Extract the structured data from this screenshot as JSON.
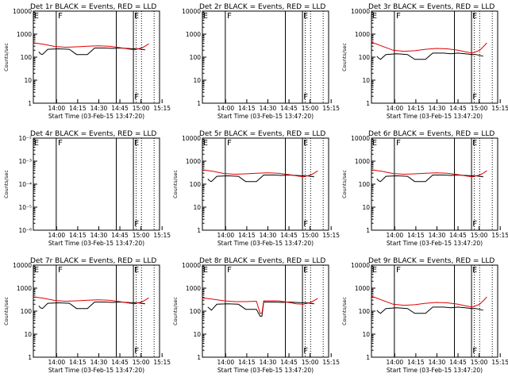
{
  "chart_data": [
    {
      "type": "line",
      "title": "Det 1r BLACK = Events, RED = LLD",
      "ylabel": "Counts/sec",
      "xlabel": "Start Time (03-Feb-15 13:47:20)",
      "x_tick_labels": [
        "14:00",
        "14:15",
        "14:30",
        "14:45",
        "15:00",
        "15:15"
      ],
      "y_tick_labels": [
        "1",
        "10",
        "100",
        "1000",
        "10000"
      ],
      "ylim": [
        1,
        10000
      ],
      "scale": "log",
      "markers": [
        [
          "E",
          "F"
        ],
        [
          "E",
          "F"
        ]
      ],
      "series": [
        {
          "color": "#000000",
          "x": [
            3,
            4,
            5,
            8,
            14,
            20,
            24,
            30,
            34,
            40,
            44,
            48,
            52,
            56,
            58,
            62
          ],
          "y": [
            170,
            140,
            130,
            220,
            230,
            220,
            130,
            130,
            250,
            250,
            240,
            250,
            240,
            230,
            230,
            210
          ]
        },
        {
          "color": "#e00000",
          "x": [
            0,
            6,
            12,
            18,
            24,
            30,
            36,
            42,
            48,
            52,
            56,
            60,
            62,
            64
          ],
          "y": [
            420,
            360,
            290,
            270,
            280,
            300,
            310,
            300,
            260,
            230,
            210,
            250,
            300,
            380
          ]
        }
      ]
    },
    {
      "type": "line",
      "title": "Det 2r BLACK = Events, RED = LLD",
      "ylabel": "",
      "xlabel": "Start Time (03-Feb-15 13:47:20)",
      "x_tick_labels": [
        "14:00",
        "14:15",
        "14:30",
        "14:45",
        "15:00",
        "15:15"
      ],
      "y_tick_labels": [
        "1",
        "10",
        "100",
        "1000",
        "10000"
      ],
      "ylim": [
        1,
        10000
      ],
      "scale": "log",
      "markers": [
        [
          "E",
          "F"
        ],
        [
          "E",
          "F"
        ]
      ],
      "series": []
    },
    {
      "type": "line",
      "title": "Det 3r BLACK = Events, RED = LLD",
      "ylabel": "Counts/sec",
      "xlabel": "Start Time (03-Feb-15 13:47:20)",
      "x_tick_labels": [
        "14:00",
        "14:15",
        "14:30",
        "14:45",
        "15:00",
        "15:15"
      ],
      "y_tick_labels": [
        "1",
        "10",
        "100",
        "1000",
        "10000"
      ],
      "ylim": [
        1,
        10000
      ],
      "scale": "log",
      "markers": [
        [
          "E",
          "F"
        ],
        [
          "E",
          "F"
        ]
      ],
      "series": [
        {
          "color": "#000000",
          "x": [
            3,
            4,
            5,
            8,
            14,
            20,
            24,
            30,
            34,
            40,
            44,
            48,
            52,
            56,
            58,
            62
          ],
          "y": [
            110,
            90,
            80,
            130,
            140,
            130,
            80,
            80,
            150,
            150,
            140,
            150,
            140,
            130,
            130,
            110
          ]
        },
        {
          "color": "#e00000",
          "x": [
            0,
            6,
            12,
            18,
            24,
            30,
            36,
            42,
            48,
            52,
            56,
            60,
            62,
            64
          ],
          "y": [
            450,
            300,
            200,
            180,
            190,
            220,
            240,
            230,
            200,
            170,
            150,
            200,
            280,
            420
          ]
        }
      ]
    },
    {
      "type": "line",
      "title": "Det 4r BLACK = Events, RED = LLD",
      "ylabel": "Counts/sec",
      "xlabel": "Start Time (03-Feb-15 13:47:20)",
      "x_tick_labels": [
        "14:00",
        "14:15",
        "14:30",
        "14:45",
        "15:00",
        "15:15"
      ],
      "y_tick_labels": [
        "10⁻⁶",
        "10⁻⁵",
        "10⁻⁴",
        "10⁻³",
        "10⁻²"
      ],
      "ylim": [
        1e-06,
        0.01
      ],
      "scale": "log",
      "markers": [
        [
          "E",
          "F"
        ],
        [
          "E",
          "F"
        ]
      ],
      "series": []
    },
    {
      "type": "line",
      "title": "Det 5r BLACK = Events, RED = LLD",
      "ylabel": "Counts/sec",
      "xlabel": "Start Time (03-Feb-15 13:47:20)",
      "x_tick_labels": [
        "14:00",
        "14:15",
        "14:30",
        "14:45",
        "15:00",
        "15:15"
      ],
      "y_tick_labels": [
        "1",
        "10",
        "100",
        "1000",
        "10000"
      ],
      "ylim": [
        1,
        10000
      ],
      "scale": "log",
      "markers": [
        [
          "E",
          "F"
        ],
        [
          "E",
          "F"
        ]
      ],
      "series": [
        {
          "color": "#000000",
          "x": [
            3,
            4,
            5,
            8,
            14,
            20,
            24,
            30,
            34,
            40,
            44,
            48,
            52,
            56,
            58,
            62
          ],
          "y": [
            170,
            140,
            130,
            220,
            230,
            220,
            130,
            130,
            250,
            250,
            240,
            250,
            240,
            230,
            230,
            210
          ]
        },
        {
          "color": "#e00000",
          "x": [
            0,
            6,
            12,
            18,
            24,
            30,
            36,
            42,
            48,
            52,
            56,
            60,
            62,
            64
          ],
          "y": [
            420,
            360,
            290,
            270,
            280,
            300,
            310,
            300,
            260,
            230,
            210,
            250,
            300,
            380
          ]
        }
      ]
    },
    {
      "type": "line",
      "title": "Det 6r BLACK = Events, RED = LLD",
      "ylabel": "Counts/sec",
      "xlabel": "Start Time (03-Feb-15 13:47:20)",
      "x_tick_labels": [
        "14:00",
        "14:15",
        "14:30",
        "14:45",
        "15:00",
        "15:15"
      ],
      "y_tick_labels": [
        "1",
        "10",
        "100",
        "1000",
        "10000"
      ],
      "ylim": [
        1,
        10000
      ],
      "scale": "log",
      "markers": [
        [
          "E",
          "F"
        ],
        [
          "E",
          "F"
        ]
      ],
      "series": [
        {
          "color": "#000000",
          "x": [
            3,
            4,
            5,
            8,
            14,
            20,
            24,
            30,
            34,
            40,
            44,
            48,
            52,
            56,
            58,
            62
          ],
          "y": [
            170,
            140,
            130,
            220,
            230,
            220,
            130,
            130,
            250,
            250,
            240,
            250,
            240,
            230,
            230,
            210
          ]
        },
        {
          "color": "#e00000",
          "x": [
            0,
            6,
            12,
            18,
            24,
            30,
            36,
            42,
            48,
            52,
            56,
            60,
            62,
            64
          ],
          "y": [
            420,
            360,
            290,
            270,
            280,
            300,
            310,
            300,
            260,
            230,
            210,
            250,
            300,
            380
          ]
        }
      ]
    },
    {
      "type": "line",
      "title": "Det 7r BLACK = Events, RED = LLD",
      "ylabel": "Counts/sec",
      "xlabel": "Start Time (03-Feb-15 13:47:20)",
      "x_tick_labels": [
        "14:00",
        "14:15",
        "14:30",
        "14:45",
        "15:00",
        "15:15"
      ],
      "y_tick_labels": [
        "1",
        "10",
        "100",
        "1000",
        "10000"
      ],
      "ylim": [
        1,
        10000
      ],
      "scale": "log",
      "markers": [
        [
          "E",
          "F"
        ],
        [
          "E",
          "F"
        ]
      ],
      "series": [
        {
          "color": "#000000",
          "x": [
            3,
            4,
            5,
            8,
            14,
            20,
            24,
            30,
            34,
            40,
            44,
            48,
            52,
            56,
            58,
            62
          ],
          "y": [
            170,
            140,
            130,
            220,
            230,
            220,
            130,
            130,
            250,
            250,
            240,
            250,
            240,
            230,
            230,
            210
          ]
        },
        {
          "color": "#e00000",
          "x": [
            0,
            6,
            12,
            18,
            24,
            30,
            36,
            42,
            48,
            52,
            56,
            60,
            62,
            64
          ],
          "y": [
            420,
            360,
            290,
            270,
            280,
            300,
            310,
            300,
            260,
            230,
            210,
            250,
            300,
            380
          ]
        }
      ]
    },
    {
      "type": "line",
      "title": "Det 8r BLACK = Events, RED = LLD",
      "ylabel": "Counts/sec",
      "xlabel": "Start Time (03-Feb-15 13:47:20)",
      "x_tick_labels": [
        "14:00",
        "14:15",
        "14:30",
        "14:45",
        "15:00",
        "15:15"
      ],
      "y_tick_labels": [
        "1",
        "10",
        "100",
        "1000",
        "10000"
      ],
      "ylim": [
        1,
        10000
      ],
      "scale": "log",
      "markers": [
        [
          "E",
          "F"
        ],
        [
          "E",
          "F"
        ]
      ],
      "series": [
        {
          "color": "#000000",
          "x": [
            3,
            4,
            5,
            8,
            14,
            20,
            24,
            30,
            32,
            33,
            34,
            40,
            44,
            48,
            52,
            56,
            58,
            62
          ],
          "y": [
            150,
            130,
            110,
            200,
            210,
            200,
            120,
            120,
            60,
            60,
            250,
            250,
            240,
            250,
            240,
            230,
            230,
            210
          ]
        },
        {
          "color": "#e00000",
          "x": [
            0,
            6,
            12,
            18,
            24,
            30,
            32,
            33,
            34,
            42,
            48,
            52,
            56,
            60,
            62,
            64
          ],
          "y": [
            380,
            330,
            280,
            260,
            260,
            270,
            80,
            80,
            280,
            280,
            240,
            210,
            200,
            240,
            290,
            360
          ]
        }
      ]
    },
    {
      "type": "line",
      "title": "Det 9r BLACK = Events, RED = LLD",
      "ylabel": "Counts/sec",
      "xlabel": "Start Time (03-Feb-15 13:47:20)",
      "x_tick_labels": [
        "14:00",
        "14:15",
        "14:30",
        "14:45",
        "15:00",
        "15:15"
      ],
      "y_tick_labels": [
        "1",
        "10",
        "100",
        "1000",
        "10000"
      ],
      "ylim": [
        1,
        10000
      ],
      "scale": "log",
      "markers": [
        [
          "E",
          "F"
        ],
        [
          "E",
          "F"
        ]
      ],
      "series": [
        {
          "color": "#000000",
          "x": [
            3,
            4,
            5,
            8,
            14,
            20,
            24,
            30,
            34,
            40,
            44,
            48,
            52,
            56,
            58,
            62
          ],
          "y": [
            110,
            90,
            80,
            130,
            140,
            130,
            80,
            80,
            150,
            150,
            140,
            150,
            140,
            130,
            130,
            110
          ]
        },
        {
          "color": "#e00000",
          "x": [
            0,
            6,
            12,
            18,
            24,
            30,
            36,
            42,
            48,
            52,
            56,
            60,
            62,
            64
          ],
          "y": [
            450,
            300,
            200,
            180,
            190,
            220,
            240,
            230,
            200,
            170,
            150,
            200,
            280,
            420
          ]
        }
      ]
    }
  ]
}
